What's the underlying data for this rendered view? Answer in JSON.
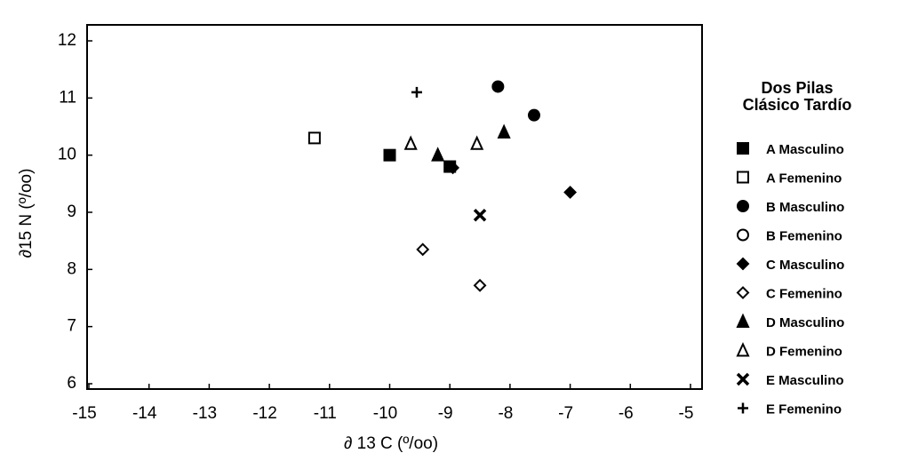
{
  "chart_data": {
    "type": "scatter",
    "xlabel": "∂ 13 C (º/oo)",
    "ylabel": "∂15 N (º/oo)",
    "legend_title": [
      "Dos Pilas",
      "Clásico Tardío"
    ],
    "xlim": [
      -15,
      -5
    ],
    "xticks": [
      -15,
      -14,
      -13,
      -12,
      -11,
      -10,
      -9,
      -8,
      -7,
      -6,
      -5
    ],
    "ylim": [
      6,
      12
    ],
    "yticks": [
      6,
      7,
      8,
      9,
      10,
      11,
      12
    ],
    "legend": "right",
    "series": [
      {
        "name": "A Masculino",
        "marker": "square",
        "color": "#000000",
        "x": [
          -10.0,
          -9.0
        ],
        "y": [
          10.0,
          9.8
        ]
      },
      {
        "name": "A Femenino",
        "marker": "square-open",
        "color": "#000000",
        "x": [
          -11.25
        ],
        "y": [
          10.3
        ]
      },
      {
        "name": "B Masculino",
        "marker": "circle",
        "color": "#000000",
        "x": [
          -8.2,
          -7.6
        ],
        "y": [
          11.2,
          10.7
        ]
      },
      {
        "name": "B Femenino",
        "marker": "circle-open",
        "color": "#000000",
        "x": [],
        "y": []
      },
      {
        "name": "C Masculino",
        "marker": "diamond",
        "color": "#000000",
        "x": [
          -8.95,
          -7.0
        ],
        "y": [
          9.78,
          9.35
        ]
      },
      {
        "name": "C Femenino",
        "marker": "diamond-open",
        "color": "#000000",
        "x": [
          -9.45,
          -8.5
        ],
        "y": [
          8.35,
          7.72
        ]
      },
      {
        "name": "D Masculino",
        "marker": "triangle",
        "color": "#000000",
        "x": [
          -9.2,
          -8.1
        ],
        "y": [
          10.0,
          10.4
        ]
      },
      {
        "name": "D Femenino",
        "marker": "triangle-open",
        "color": "#000000",
        "x": [
          -9.65,
          -8.55
        ],
        "y": [
          10.2,
          10.2
        ]
      },
      {
        "name": "E Masculino",
        "marker": "x",
        "color": "#000000",
        "x": [
          -8.5
        ],
        "y": [
          8.95
        ]
      },
      {
        "name": "E Femenino",
        "marker": "plus",
        "color": "#000000",
        "x": [
          -9.55
        ],
        "y": [
          11.1
        ]
      }
    ]
  }
}
